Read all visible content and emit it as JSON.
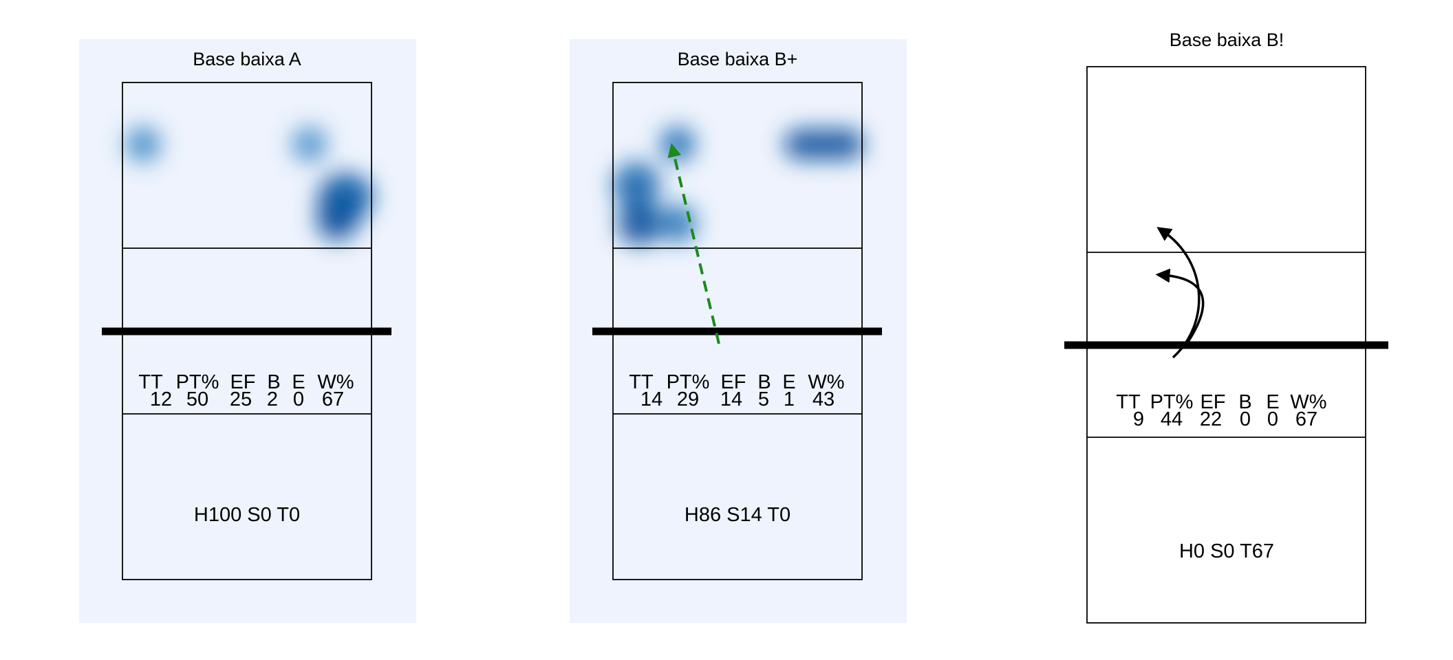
{
  "panels": [
    {
      "title": "Base baixa A",
      "stats_headers": [
        "TT",
        "PT%",
        "EF",
        "B",
        "E",
        "W%"
      ],
      "stats_values": [
        "12",
        "50",
        "25",
        "2",
        "0",
        "67"
      ],
      "footer": "H100 S0 T0",
      "shaded_background": true,
      "heat_color": "#08519c",
      "background_color": "#eef3fd"
    },
    {
      "title": "Base baixa B+",
      "stats_headers": [
        "TT",
        "PT%",
        "EF",
        "B",
        "E",
        "W%"
      ],
      "stats_values": [
        "14",
        "29",
        "14",
        "5",
        "1",
        "43"
      ],
      "footer": "H86 S14 T0",
      "shaded_background": true,
      "heat_color": "#08519c",
      "background_color": "#eef3fd",
      "arrow_color": "#1a8a1a",
      "arrow_style": "dashed"
    },
    {
      "title": "Base baixa B!",
      "stats_headers": [
        "TT",
        "PT%",
        "EF",
        "B",
        "E",
        "W%"
      ],
      "stats_values": [
        "9",
        "44",
        "22",
        "0",
        "0",
        "67"
      ],
      "footer": "H0 S0 T67",
      "shaded_background": false,
      "arrow_color": "#000000",
      "arrow_style": "solid curved"
    }
  ]
}
